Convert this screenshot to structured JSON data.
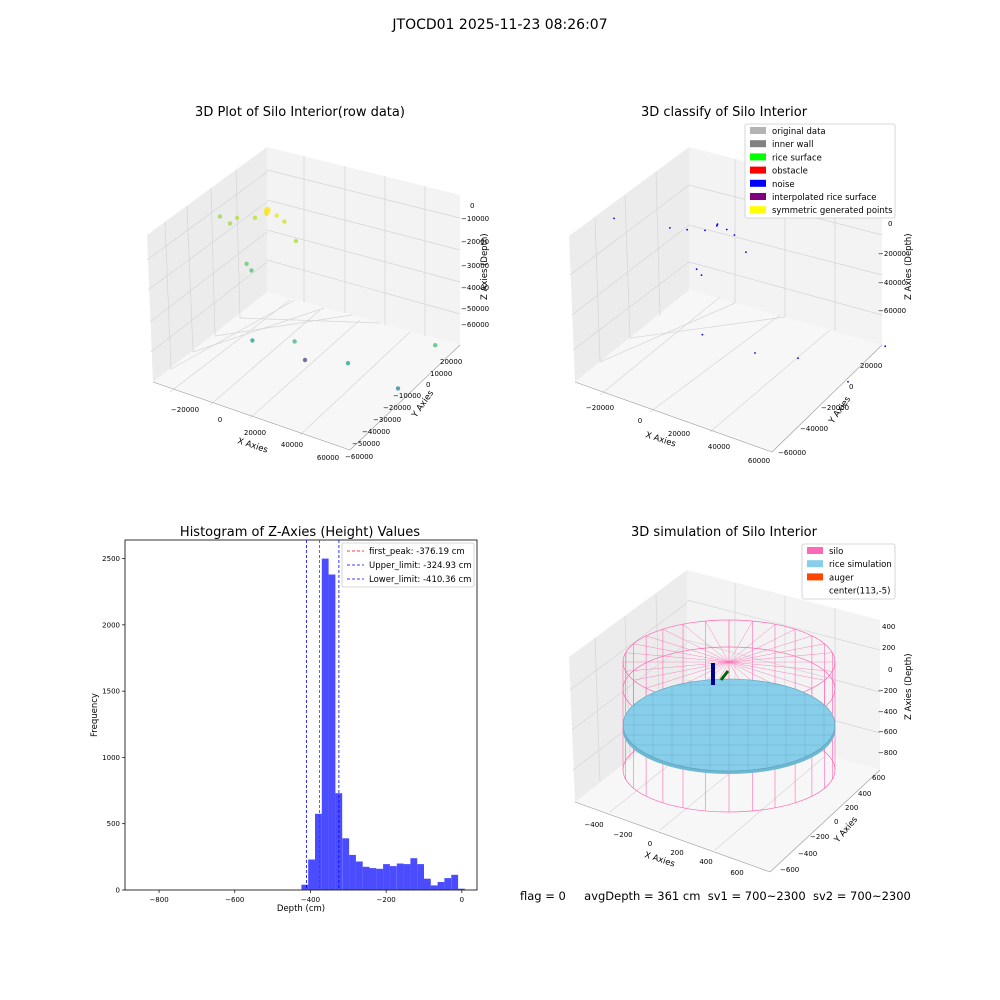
{
  "suptitle": "JTOCD01 2025-11-23 08:26:07",
  "footer": {
    "flag": "flag = 0",
    "avgdepth": "avgDepth = 361 cm",
    "sv1": "sv1 = 700~2300",
    "sv2": "sv2 = 700~2300"
  },
  "chart_data": [
    {
      "type": "scatter",
      "projection": "3d",
      "title": "3D Plot of Silo Interior(row data)",
      "xlabel": "X Axies",
      "ylabel": "Y Axies",
      "zlabel": "Z Axies (Depth)",
      "xticks": [
        "−20000",
        "0",
        "20000",
        "40000",
        "60000"
      ],
      "yticks": [
        "20000",
        "10000",
        "0",
        "−10000",
        "−20000",
        "−30000",
        "−40000",
        "−50000",
        "−60000"
      ],
      "zticks": [
        "0",
        "−10000",
        "−20000",
        "−30000",
        "−40000",
        "−50000",
        "−60000"
      ],
      "grid": true,
      "colormap": "viridis",
      "points": [
        {
          "x": 10000,
          "y": 5000,
          "z": -2000,
          "color": "#fde725"
        },
        {
          "x": 11000,
          "y": 6000,
          "z": -1500,
          "color": "#fde725"
        },
        {
          "x": 9000,
          "y": 4000,
          "z": -3000,
          "color": "#f1e51d"
        },
        {
          "x": 12000,
          "y": 3000,
          "z": -2500,
          "color": "#e2e418"
        },
        {
          "x": 14000,
          "y": 2000,
          "z": -4000,
          "color": "#d0e11c"
        },
        {
          "x": 8000,
          "y": 8000,
          "z": -6000,
          "color": "#c2df23"
        },
        {
          "x": 3000,
          "y": 10000,
          "z": -8000,
          "color": "#b5de2b"
        },
        {
          "x": 15000,
          "y": -2000,
          "z": -10000,
          "color": "#addc30"
        },
        {
          "x": 2000,
          "y": 12000,
          "z": -11000,
          "color": "#a0da39"
        },
        {
          "x": -5000,
          "y": 8000,
          "z": -9000,
          "color": "#95d840"
        },
        {
          "x": 0,
          "y": 2000,
          "z": -24000,
          "color": "#5ec962"
        },
        {
          "x": 1000,
          "y": 1000,
          "z": -26000,
          "color": "#4ec36b"
        },
        {
          "x": 56000,
          "y": -15000,
          "z": -35000,
          "color": "#3fbc73"
        },
        {
          "x": 8000,
          "y": -10000,
          "z": -48000,
          "color": "#35b779"
        },
        {
          "x": -6000,
          "y": -8000,
          "z": -52000,
          "color": "#1f9e89"
        },
        {
          "x": 18000,
          "y": -22000,
          "z": -50000,
          "color": "#20a486"
        },
        {
          "x": 30000,
          "y": -30000,
          "z": -54000,
          "color": "#23888e"
        },
        {
          "x": 20000,
          "y": 0,
          "z": -55000,
          "color": "#3e4989"
        }
      ]
    },
    {
      "type": "scatter",
      "projection": "3d",
      "title": "3D classify of Silo Interior",
      "xlabel": "X Axies",
      "ylabel": "Y Axies",
      "zlabel": "Z Axies (Depth)",
      "xticks": [
        "−20000",
        "0",
        "20000",
        "40000",
        "60000"
      ],
      "yticks": [
        "20000",
        "0",
        "−20000",
        "−40000",
        "−60000"
      ],
      "zticks": [
        "0",
        "−20000",
        "−40000",
        "−60000"
      ],
      "grid": true,
      "legend": "top-right",
      "legend_entries": [
        {
          "label": "original data",
          "color": "#b3b3b3"
        },
        {
          "label": "inner wall",
          "color": "#808080"
        },
        {
          "label": "rice surface",
          "color": "#00ff00"
        },
        {
          "label": "obstacle",
          "color": "#ff0000"
        },
        {
          "label": "noise",
          "color": "#0000ff"
        },
        {
          "label": "interpolated rice surface",
          "color": "#800080"
        },
        {
          "label": "symmetric generated points",
          "color": "#ffff00"
        }
      ],
      "noise_points": [
        {
          "x": 10000,
          "y": 5000,
          "z": -2000
        },
        {
          "x": 11000,
          "y": 6000,
          "z": -1500
        },
        {
          "x": 9500,
          "y": 4500,
          "z": -2200
        },
        {
          "x": 12000,
          "y": 3000,
          "z": -2500
        },
        {
          "x": 14000,
          "y": 2000,
          "z": -4000
        },
        {
          "x": 8000,
          "y": 8000,
          "z": -6000
        },
        {
          "x": 3000,
          "y": 10000,
          "z": -8000
        },
        {
          "x": 15000,
          "y": -2000,
          "z": -10000
        },
        {
          "x": -5000,
          "y": 8000,
          "z": -9000
        },
        {
          "x": -20000,
          "y": 15000,
          "z": -12000
        },
        {
          "x": 0,
          "y": 2000,
          "z": -24000
        },
        {
          "x": 1000,
          "y": 1000,
          "z": -26000
        },
        {
          "x": 56000,
          "y": -15000,
          "z": -35000
        },
        {
          "x": -6000,
          "y": -8000,
          "z": -52000
        },
        {
          "x": 18000,
          "y": -22000,
          "z": -50000
        },
        {
          "x": 30000,
          "y": -30000,
          "z": -54000
        },
        {
          "x": 20000,
          "y": 0,
          "z": -55000
        }
      ]
    },
    {
      "type": "bar",
      "title": "Histogram of Z-Axies (Height) Values",
      "xlabel": "Depth (cm)",
      "ylabel": "Frequency",
      "xlim": [
        -890,
        40
      ],
      "ylim": [
        0,
        2640
      ],
      "xticks": [
        -800,
        -600,
        -400,
        -200,
        0
      ],
      "yticks": [
        0,
        500,
        1000,
        1500,
        2000,
        2500
      ],
      "bar_color": "#0000ff",
      "bar_width": 18,
      "bins_left": [
        -424,
        -406,
        -388,
        -370,
        -352,
        -334,
        -316,
        -298,
        -280,
        -262,
        -244,
        -226,
        -208,
        -190,
        -172,
        -154,
        -136,
        -118,
        -100,
        -82,
        -64,
        -46,
        -28,
        -10
      ],
      "values": [
        40,
        230,
        575,
        2500,
        2380,
        730,
        390,
        265,
        215,
        175,
        165,
        160,
        195,
        180,
        200,
        195,
        240,
        195,
        85,
        35,
        60,
        90,
        115,
        10
      ],
      "vlines": [
        {
          "label": "first_peak: -376.19 cm",
          "x": -376.19,
          "color": "#ff0000"
        },
        {
          "label": "Upper_limit: -324.93 cm",
          "x": -324.93,
          "color": "#0000ff"
        },
        {
          "label": "Lower_limit: -410.36 cm",
          "x": -410.36,
          "color": "#0000ff"
        }
      ],
      "legend": "top-right"
    },
    {
      "type": "surface",
      "projection": "3d",
      "title": "3D simulation of Silo Interior",
      "xlabel": "X Axies",
      "ylabel": "Y Axies",
      "zlabel": "Z Axies (Depth)",
      "xticks": [
        "−400",
        "−200",
        "0",
        "200",
        "400",
        "600"
      ],
      "yticks": [
        "600",
        "400",
        "200",
        "0",
        "−200",
        "−400",
        "−600"
      ],
      "zticks": [
        "400",
        "200",
        "0",
        "−200",
        "−400",
        "−600",
        "−800"
      ],
      "grid": true,
      "legend": "top-right",
      "legend_entries": [
        {
          "label": "silo",
          "color": "#ff69b4"
        },
        {
          "label": "rice simulation",
          "color": "#87ceeb"
        },
        {
          "label": "auger",
          "color": "#ff4500"
        },
        {
          "label": "center(113,-5)",
          "color": ""
        }
      ]
    }
  ]
}
